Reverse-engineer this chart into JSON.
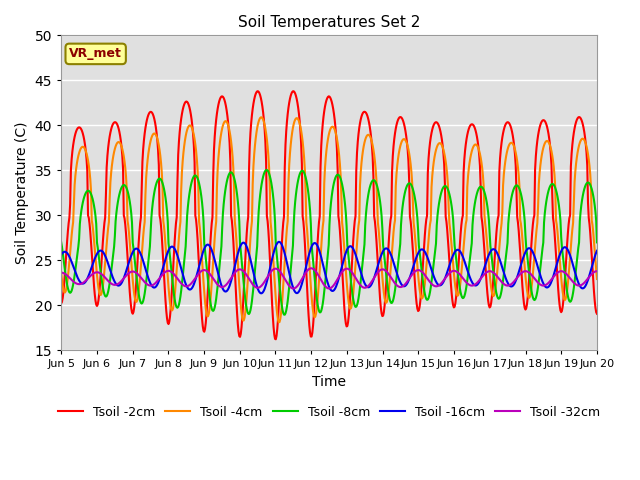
{
  "title": "Soil Temperatures Set 2",
  "xlabel": "Time",
  "ylabel": "Soil Temperature (C)",
  "ylim": [
    15,
    50
  ],
  "xlim_days": [
    0,
    15
  ],
  "plot_bg_color": "#e0e0e0",
  "fig_bg_color": "#ffffff",
  "annotation_text": "VR_met",
  "annotation_fg": "#8B0000",
  "annotation_bg": "#ffff99",
  "annotation_border": "#8B8000",
  "series": [
    {
      "label": "Tsoil -2cm",
      "color": "#ff0000",
      "mean": 30.0,
      "amplitude": 11.5,
      "phase_shift": 0.0,
      "depth_lag": 0.0,
      "sharpness": 3.0,
      "amp_envelope": [
        0.85,
        0.9,
        1.0,
        1.1,
        1.15,
        1.2,
        1.2,
        1.15,
        1.0,
        0.95,
        0.9,
        0.88,
        0.9,
        0.92,
        0.95
      ]
    },
    {
      "label": "Tsoil -4cm",
      "color": "#ff8800",
      "mean": 29.5,
      "amplitude": 9.5,
      "phase_shift": 0.1,
      "depth_lag": 0.0,
      "sharpness": 2.5,
      "amp_envelope": [
        0.85,
        0.9,
        1.0,
        1.1,
        1.15,
        1.2,
        1.2,
        1.1,
        1.0,
        0.95,
        0.9,
        0.88,
        0.9,
        0.92,
        0.95
      ]
    },
    {
      "label": "Tsoil -8cm",
      "color": "#00cc00",
      "mean": 27.0,
      "amplitude": 7.0,
      "phase_shift": 0.25,
      "depth_lag": 0.0,
      "sharpness": 2.0,
      "amp_envelope": [
        0.8,
        0.88,
        1.0,
        1.05,
        1.1,
        1.15,
        1.15,
        1.1,
        1.0,
        0.95,
        0.9,
        0.88,
        0.9,
        0.92,
        0.95
      ]
    },
    {
      "label": "Tsoil -16cm",
      "color": "#0000ee",
      "mean": 24.2,
      "amplitude": 2.2,
      "phase_shift": 0.6,
      "depth_lag": 0.0,
      "sharpness": 1.0,
      "amp_envelope": [
        0.8,
        0.9,
        1.0,
        1.1,
        1.2,
        1.3,
        1.3,
        1.2,
        1.0,
        0.95,
        0.9,
        0.9,
        0.95,
        1.0,
        1.05
      ]
    },
    {
      "label": "Tsoil -32cm",
      "color": "#bb00bb",
      "mean": 23.0,
      "amplitude": 0.8,
      "phase_shift": 2.5,
      "depth_lag": 0.0,
      "sharpness": 1.0,
      "amp_envelope": [
        0.8,
        0.9,
        1.0,
        1.1,
        1.2,
        1.3,
        1.4,
        1.4,
        1.3,
        1.2,
        1.1,
        1.0,
        1.0,
        1.0,
        1.0
      ]
    }
  ],
  "xtick_labels": [
    "Jun 5",
    "Jun 6",
    "Jun 7",
    "Jun 8",
    "Jun 9",
    "Jun 10",
    "Jun 11",
    "Jun 12",
    "Jun 13",
    "Jun 14",
    "Jun 15",
    "Jun 16",
    "Jun 17",
    "Jun 18",
    "Jun 19",
    "Jun 20"
  ],
  "xtick_positions": [
    0,
    1,
    2,
    3,
    4,
    5,
    6,
    7,
    8,
    9,
    10,
    11,
    12,
    13,
    14,
    15
  ],
  "ytick_positions": [
    15,
    20,
    25,
    30,
    35,
    40,
    45,
    50
  ],
  "grid_color": "#ffffff",
  "line_width": 1.5
}
